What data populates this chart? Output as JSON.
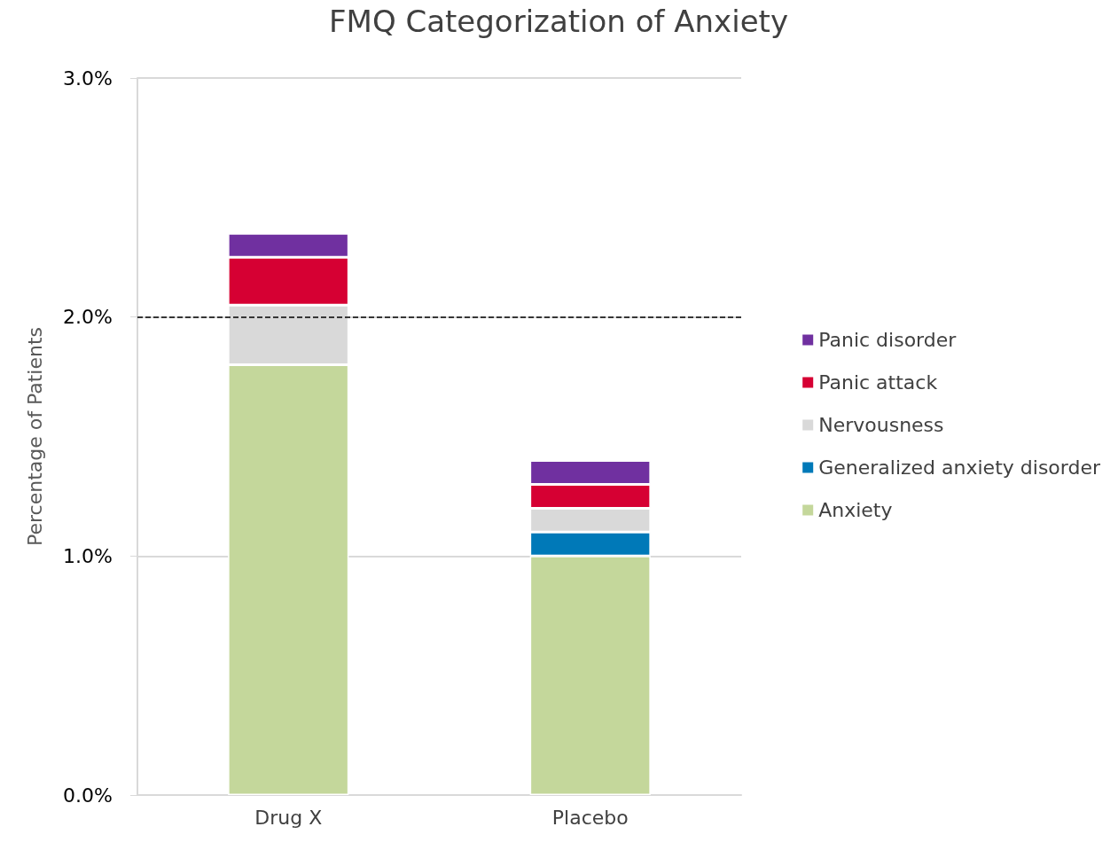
{
  "chart_data": {
    "type": "bar",
    "title": "FMQ Categorization of Anxiety",
    "ylabel": "Percentage of Patients",
    "categories": [
      "Drug X",
      "Placebo"
    ],
    "stacked": true,
    "series": [
      {
        "name": "Anxiety",
        "color": "#c4d79b",
        "values": [
          1.8,
          1.0
        ]
      },
      {
        "name": "Generalized anxiety disorder",
        "color": "#0079b8",
        "values": [
          0,
          0.1
        ]
      },
      {
        "name": "Nervousness",
        "color": "#d9d9d9",
        "values": [
          0.25,
          0.1
        ]
      },
      {
        "name": "Panic attack",
        "color": "#d60033",
        "values": [
          0.2,
          0.1
        ]
      },
      {
        "name": "Panic disorder",
        "color": "#7030a0",
        "values": [
          0.1,
          0.1
        ]
      }
    ],
    "ylim": [
      0,
      3
    ],
    "yticks": [
      {
        "value": 0,
        "label": "0.0%"
      },
      {
        "value": 1,
        "label": "1.0%"
      },
      {
        "value": 2,
        "label": "2.0%"
      },
      {
        "value": 3,
        "label": "3.0%"
      }
    ],
    "grid": "y",
    "legend": "right",
    "ref_lines": [
      {
        "axis": "y",
        "value": 2,
        "label": null,
        "color": "#000000",
        "line_style": "dashed"
      }
    ]
  }
}
